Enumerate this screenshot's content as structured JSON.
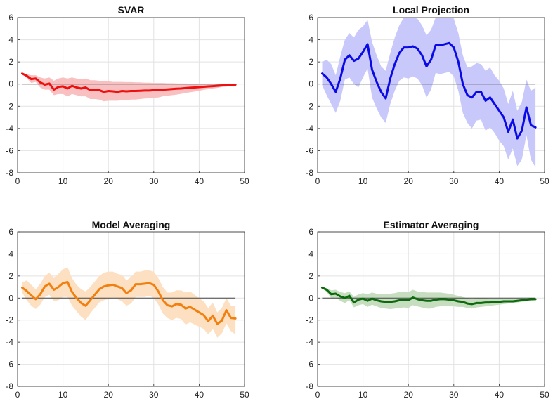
{
  "chart_data": [
    {
      "type": "line",
      "title": "SVAR",
      "color": "#ee1010",
      "band_color": "#f8c0c0",
      "xlim": [
        0,
        50
      ],
      "ylim": [
        -8,
        6
      ],
      "xticks": [
        0,
        10,
        20,
        30,
        40,
        50
      ],
      "yticks": [
        6,
        4,
        2,
        0,
        -2,
        -4,
        -6,
        -8
      ],
      "reference_line": 0,
      "grid": true,
      "x": [
        1,
        2,
        3,
        4,
        5,
        6,
        7,
        8,
        9,
        10,
        11,
        12,
        13,
        14,
        15,
        16,
        17,
        18,
        19,
        20,
        21,
        22,
        23,
        24,
        25,
        26,
        27,
        28,
        29,
        30,
        31,
        32,
        33,
        34,
        35,
        36,
        37,
        38,
        39,
        40,
        41,
        42,
        43,
        44,
        45,
        46,
        47,
        48
      ],
      "values": [
        0.95,
        0.75,
        0.45,
        0.5,
        0.15,
        -0.05,
        0.05,
        -0.5,
        -0.25,
        -0.2,
        -0.4,
        -0.15,
        -0.3,
        -0.4,
        -0.3,
        -0.55,
        -0.55,
        -0.55,
        -0.7,
        -0.62,
        -0.65,
        -0.7,
        -0.62,
        -0.65,
        -0.62,
        -0.62,
        -0.6,
        -0.58,
        -0.58,
        -0.55,
        -0.55,
        -0.5,
        -0.48,
        -0.45,
        -0.42,
        -0.4,
        -0.36,
        -0.33,
        -0.3,
        -0.27,
        -0.24,
        -0.21,
        -0.18,
        -0.15,
        -0.12,
        -0.1,
        -0.08,
        -0.05
      ],
      "upper": [
        1.0,
        0.9,
        0.8,
        0.8,
        0.6,
        0.5,
        0.6,
        0.3,
        0.5,
        0.6,
        0.5,
        0.6,
        0.5,
        0.45,
        0.5,
        0.35,
        0.35,
        0.3,
        0.25,
        0.25,
        0.2,
        0.2,
        0.2,
        0.18,
        0.18,
        0.15,
        0.15,
        0.13,
        0.12,
        0.1,
        0.1,
        0.1,
        0.08,
        0.08,
        0.06,
        0.05,
        0.05,
        0.04,
        0.03,
        0.03,
        0.02,
        0.02,
        0.01,
        0.0,
        0.0,
        0.0,
        0.0,
        0.0
      ],
      "lower": [
        0.9,
        0.55,
        0.1,
        0.2,
        -0.3,
        -0.5,
        -0.5,
        -1.0,
        -0.9,
        -0.9,
        -1.1,
        -0.9,
        -1.0,
        -1.1,
        -1.1,
        -1.35,
        -1.35,
        -1.4,
        -1.55,
        -1.5,
        -1.5,
        -1.5,
        -1.45,
        -1.45,
        -1.4,
        -1.4,
        -1.35,
        -1.3,
        -1.28,
        -1.22,
        -1.2,
        -1.1,
        -1.05,
        -1.0,
        -0.95,
        -0.88,
        -0.8,
        -0.74,
        -0.68,
        -0.6,
        -0.52,
        -0.46,
        -0.4,
        -0.34,
        -0.26,
        -0.22,
        -0.18,
        -0.12
      ]
    },
    {
      "type": "line",
      "title": "Local Projection",
      "color": "#0a0ae6",
      "band_color": "#c8c8fa",
      "xlim": [
        0,
        50
      ],
      "ylim": [
        -8,
        6
      ],
      "xticks": [
        0,
        10,
        20,
        30,
        40,
        50
      ],
      "yticks": [
        6,
        4,
        2,
        0,
        -2,
        -4,
        -6,
        -8
      ],
      "reference_line": 0,
      "grid": true,
      "x": [
        1,
        2,
        3,
        4,
        5,
        6,
        7,
        8,
        9,
        10,
        11,
        12,
        13,
        14,
        15,
        16,
        17,
        18,
        19,
        20,
        21,
        22,
        23,
        24,
        25,
        26,
        27,
        28,
        29,
        30,
        31,
        32,
        33,
        34,
        35,
        36,
        37,
        38,
        39,
        40,
        41,
        42,
        43,
        44,
        45,
        46,
        47,
        48
      ],
      "values": [
        0.95,
        0.6,
        0.0,
        -0.7,
        0.5,
        2.2,
        2.6,
        2.1,
        2.3,
        2.9,
        3.6,
        1.3,
        0.2,
        -0.7,
        -1.3,
        0.5,
        1.8,
        2.8,
        3.3,
        3.3,
        3.4,
        3.2,
        2.6,
        1.6,
        2.2,
        3.5,
        3.5,
        3.6,
        3.7,
        3.3,
        2.0,
        0.0,
        -1.0,
        -1.2,
        -0.7,
        -0.7,
        -1.5,
        -1.2,
        -1.8,
        -2.4,
        -3.0,
        -4.3,
        -3.2,
        -4.9,
        -4.2,
        -2.1,
        -3.7,
        -3.9
      ],
      "upper": [
        2.0,
        2.2,
        1.8,
        0.8,
        2.5,
        4.0,
        4.6,
        4.2,
        4.9,
        5.2,
        5.8,
        3.8,
        2.6,
        1.6,
        1.2,
        2.8,
        4.2,
        5.3,
        6.0,
        6.1,
        6.1,
        5.9,
        5.3,
        4.4,
        4.9,
        6.0,
        6.1,
        6.2,
        6.3,
        5.9,
        4.6,
        2.6,
        1.5,
        1.6,
        1.9,
        1.8,
        1.2,
        1.5,
        0.8,
        0.3,
        -0.4,
        -1.8,
        -0.6,
        -2.4,
        -1.6,
        0.4,
        -0.6,
        -0.3
      ],
      "lower": [
        -0.1,
        -1.0,
        -1.8,
        -2.6,
        -1.5,
        0.4,
        0.6,
        0.0,
        -0.3,
        0.6,
        1.4,
        -1.2,
        -2.2,
        -3.0,
        -3.5,
        -1.8,
        -0.6,
        0.3,
        0.6,
        0.5,
        0.7,
        0.5,
        -0.1,
        -1.2,
        -0.5,
        1.0,
        0.9,
        1.0,
        1.1,
        0.7,
        -0.6,
        -2.6,
        -3.5,
        -4.0,
        -3.3,
        -3.2,
        -4.2,
        -3.9,
        -4.4,
        -5.1,
        -5.6,
        -6.8,
        -5.8,
        -7.4,
        -6.8,
        -4.6,
        -6.8,
        -7.5
      ]
    },
    {
      "type": "line",
      "title": "Model Averaging",
      "color": "#f08010",
      "band_color": "#fde0c2",
      "xlim": [
        0,
        50
      ],
      "ylim": [
        -8,
        6
      ],
      "xticks": [
        0,
        10,
        20,
        30,
        40,
        50
      ],
      "yticks": [
        6,
        4,
        2,
        0,
        -2,
        -4,
        -6,
        -8
      ],
      "reference_line": 0,
      "grid": true,
      "x": [
        1,
        2,
        3,
        4,
        5,
        6,
        7,
        8,
        9,
        10,
        11,
        12,
        13,
        14,
        15,
        16,
        17,
        18,
        19,
        20,
        21,
        22,
        23,
        24,
        25,
        26,
        27,
        28,
        29,
        30,
        31,
        32,
        33,
        34,
        35,
        36,
        37,
        38,
        39,
        40,
        41,
        42,
        43,
        44,
        45,
        46,
        47,
        48
      ],
      "values": [
        0.95,
        0.65,
        0.25,
        -0.1,
        0.35,
        1.05,
        1.3,
        0.75,
        1.0,
        1.35,
        1.45,
        0.55,
        0.0,
        -0.45,
        -0.7,
        -0.2,
        0.3,
        0.8,
        1.05,
        1.15,
        1.2,
        1.05,
        0.9,
        0.45,
        0.7,
        1.25,
        1.25,
        1.3,
        1.35,
        1.2,
        0.6,
        -0.2,
        -0.65,
        -0.75,
        -0.55,
        -0.6,
        -0.95,
        -0.8,
        -1.05,
        -1.3,
        -1.55,
        -2.1,
        -1.6,
        -2.35,
        -2.05,
        -1.1,
        -1.8,
        -1.85
      ],
      "upper": [
        1.4,
        1.6,
        1.2,
        0.8,
        1.3,
        2.0,
        2.3,
        1.8,
        2.2,
        2.6,
        2.8,
        1.8,
        1.2,
        0.8,
        0.6,
        1.0,
        1.5,
        2.0,
        2.3,
        2.4,
        2.4,
        2.2,
        2.1,
        1.6,
        1.9,
        2.4,
        2.4,
        2.5,
        2.5,
        2.4,
        1.8,
        1.0,
        0.5,
        0.5,
        0.7,
        0.7,
        0.5,
        0.6,
        0.3,
        0.0,
        -0.3,
        -0.9,
        -0.4,
        -1.3,
        -0.9,
        0.0,
        -0.7,
        -0.7
      ],
      "lower": [
        0.5,
        -0.2,
        -0.7,
        -1.0,
        -0.6,
        0.1,
        0.3,
        -0.3,
        -0.2,
        0.1,
        0.1,
        -0.7,
        -1.2,
        -1.7,
        -2.0,
        -1.4,
        -0.9,
        -0.4,
        -0.2,
        -0.1,
        0.0,
        -0.1,
        -0.3,
        -0.7,
        -0.5,
        0.1,
        0.1,
        0.1,
        0.2,
        0.0,
        -0.6,
        -1.4,
        -1.8,
        -2.0,
        -1.8,
        -1.9,
        -2.4,
        -2.2,
        -2.4,
        -2.6,
        -2.8,
        -3.3,
        -2.8,
        -3.6,
        -3.2,
        -2.3,
        -3.0,
        -3.3
      ]
    },
    {
      "type": "line",
      "title": "Estimator Averaging",
      "color": "#0b6a0b",
      "band_color": "#c6ddc0",
      "xlim": [
        0,
        50
      ],
      "ylim": [
        -8,
        6
      ],
      "xticks": [
        0,
        10,
        20,
        30,
        40,
        50
      ],
      "yticks": [
        6,
        4,
        2,
        0,
        -2,
        -4,
        -6,
        -8
      ],
      "reference_line": 0,
      "grid": true,
      "x": [
        1,
        2,
        3,
        4,
        5,
        6,
        7,
        8,
        9,
        10,
        11,
        12,
        13,
        14,
        15,
        16,
        17,
        18,
        19,
        20,
        21,
        22,
        23,
        24,
        25,
        26,
        27,
        28,
        29,
        30,
        31,
        32,
        33,
        34,
        35,
        36,
        37,
        38,
        39,
        40,
        41,
        42,
        43,
        44,
        45,
        46,
        47,
        48
      ],
      "values": [
        0.95,
        0.75,
        0.35,
        0.4,
        0.15,
        0.0,
        0.2,
        -0.4,
        -0.15,
        -0.05,
        -0.25,
        -0.05,
        -0.2,
        -0.3,
        -0.35,
        -0.35,
        -0.3,
        -0.2,
        -0.15,
        -0.2,
        0.05,
        -0.1,
        -0.2,
        -0.25,
        -0.25,
        -0.15,
        -0.1,
        -0.1,
        -0.15,
        -0.2,
        -0.3,
        -0.35,
        -0.5,
        -0.55,
        -0.45,
        -0.45,
        -0.4,
        -0.4,
        -0.35,
        -0.35,
        -0.3,
        -0.3,
        -0.3,
        -0.25,
        -0.2,
        -0.15,
        -0.1,
        -0.1
      ],
      "upper": [
        1.0,
        0.9,
        0.7,
        0.75,
        0.55,
        0.45,
        0.6,
        0.1,
        0.35,
        0.45,
        0.35,
        0.5,
        0.4,
        0.35,
        0.4,
        0.4,
        0.45,
        0.55,
        0.6,
        0.55,
        0.75,
        0.6,
        0.55,
        0.5,
        0.5,
        0.5,
        0.5,
        0.45,
        0.4,
        0.3,
        0.2,
        0.1,
        0.0,
        -0.05,
        0.0,
        0.0,
        0.0,
        -0.05,
        -0.05,
        -0.05,
        -0.05,
        -0.05,
        -0.05,
        -0.05,
        -0.05,
        -0.05,
        -0.03,
        -0.02
      ],
      "lower": [
        0.9,
        0.55,
        0.0,
        0.05,
        -0.25,
        -0.45,
        -0.2,
        -0.85,
        -0.65,
        -0.55,
        -0.8,
        -0.6,
        -0.75,
        -0.9,
        -0.95,
        -1.0,
        -0.95,
        -0.9,
        -0.85,
        -0.9,
        -0.65,
        -0.75,
        -0.85,
        -0.95,
        -0.95,
        -0.8,
        -0.75,
        -0.7,
        -0.75,
        -0.75,
        -0.8,
        -0.8,
        -0.9,
        -0.95,
        -0.85,
        -0.8,
        -0.75,
        -0.7,
        -0.65,
        -0.6,
        -0.55,
        -0.5,
        -0.45,
        -0.4,
        -0.35,
        -0.3,
        -0.25,
        -0.2
      ]
    }
  ]
}
